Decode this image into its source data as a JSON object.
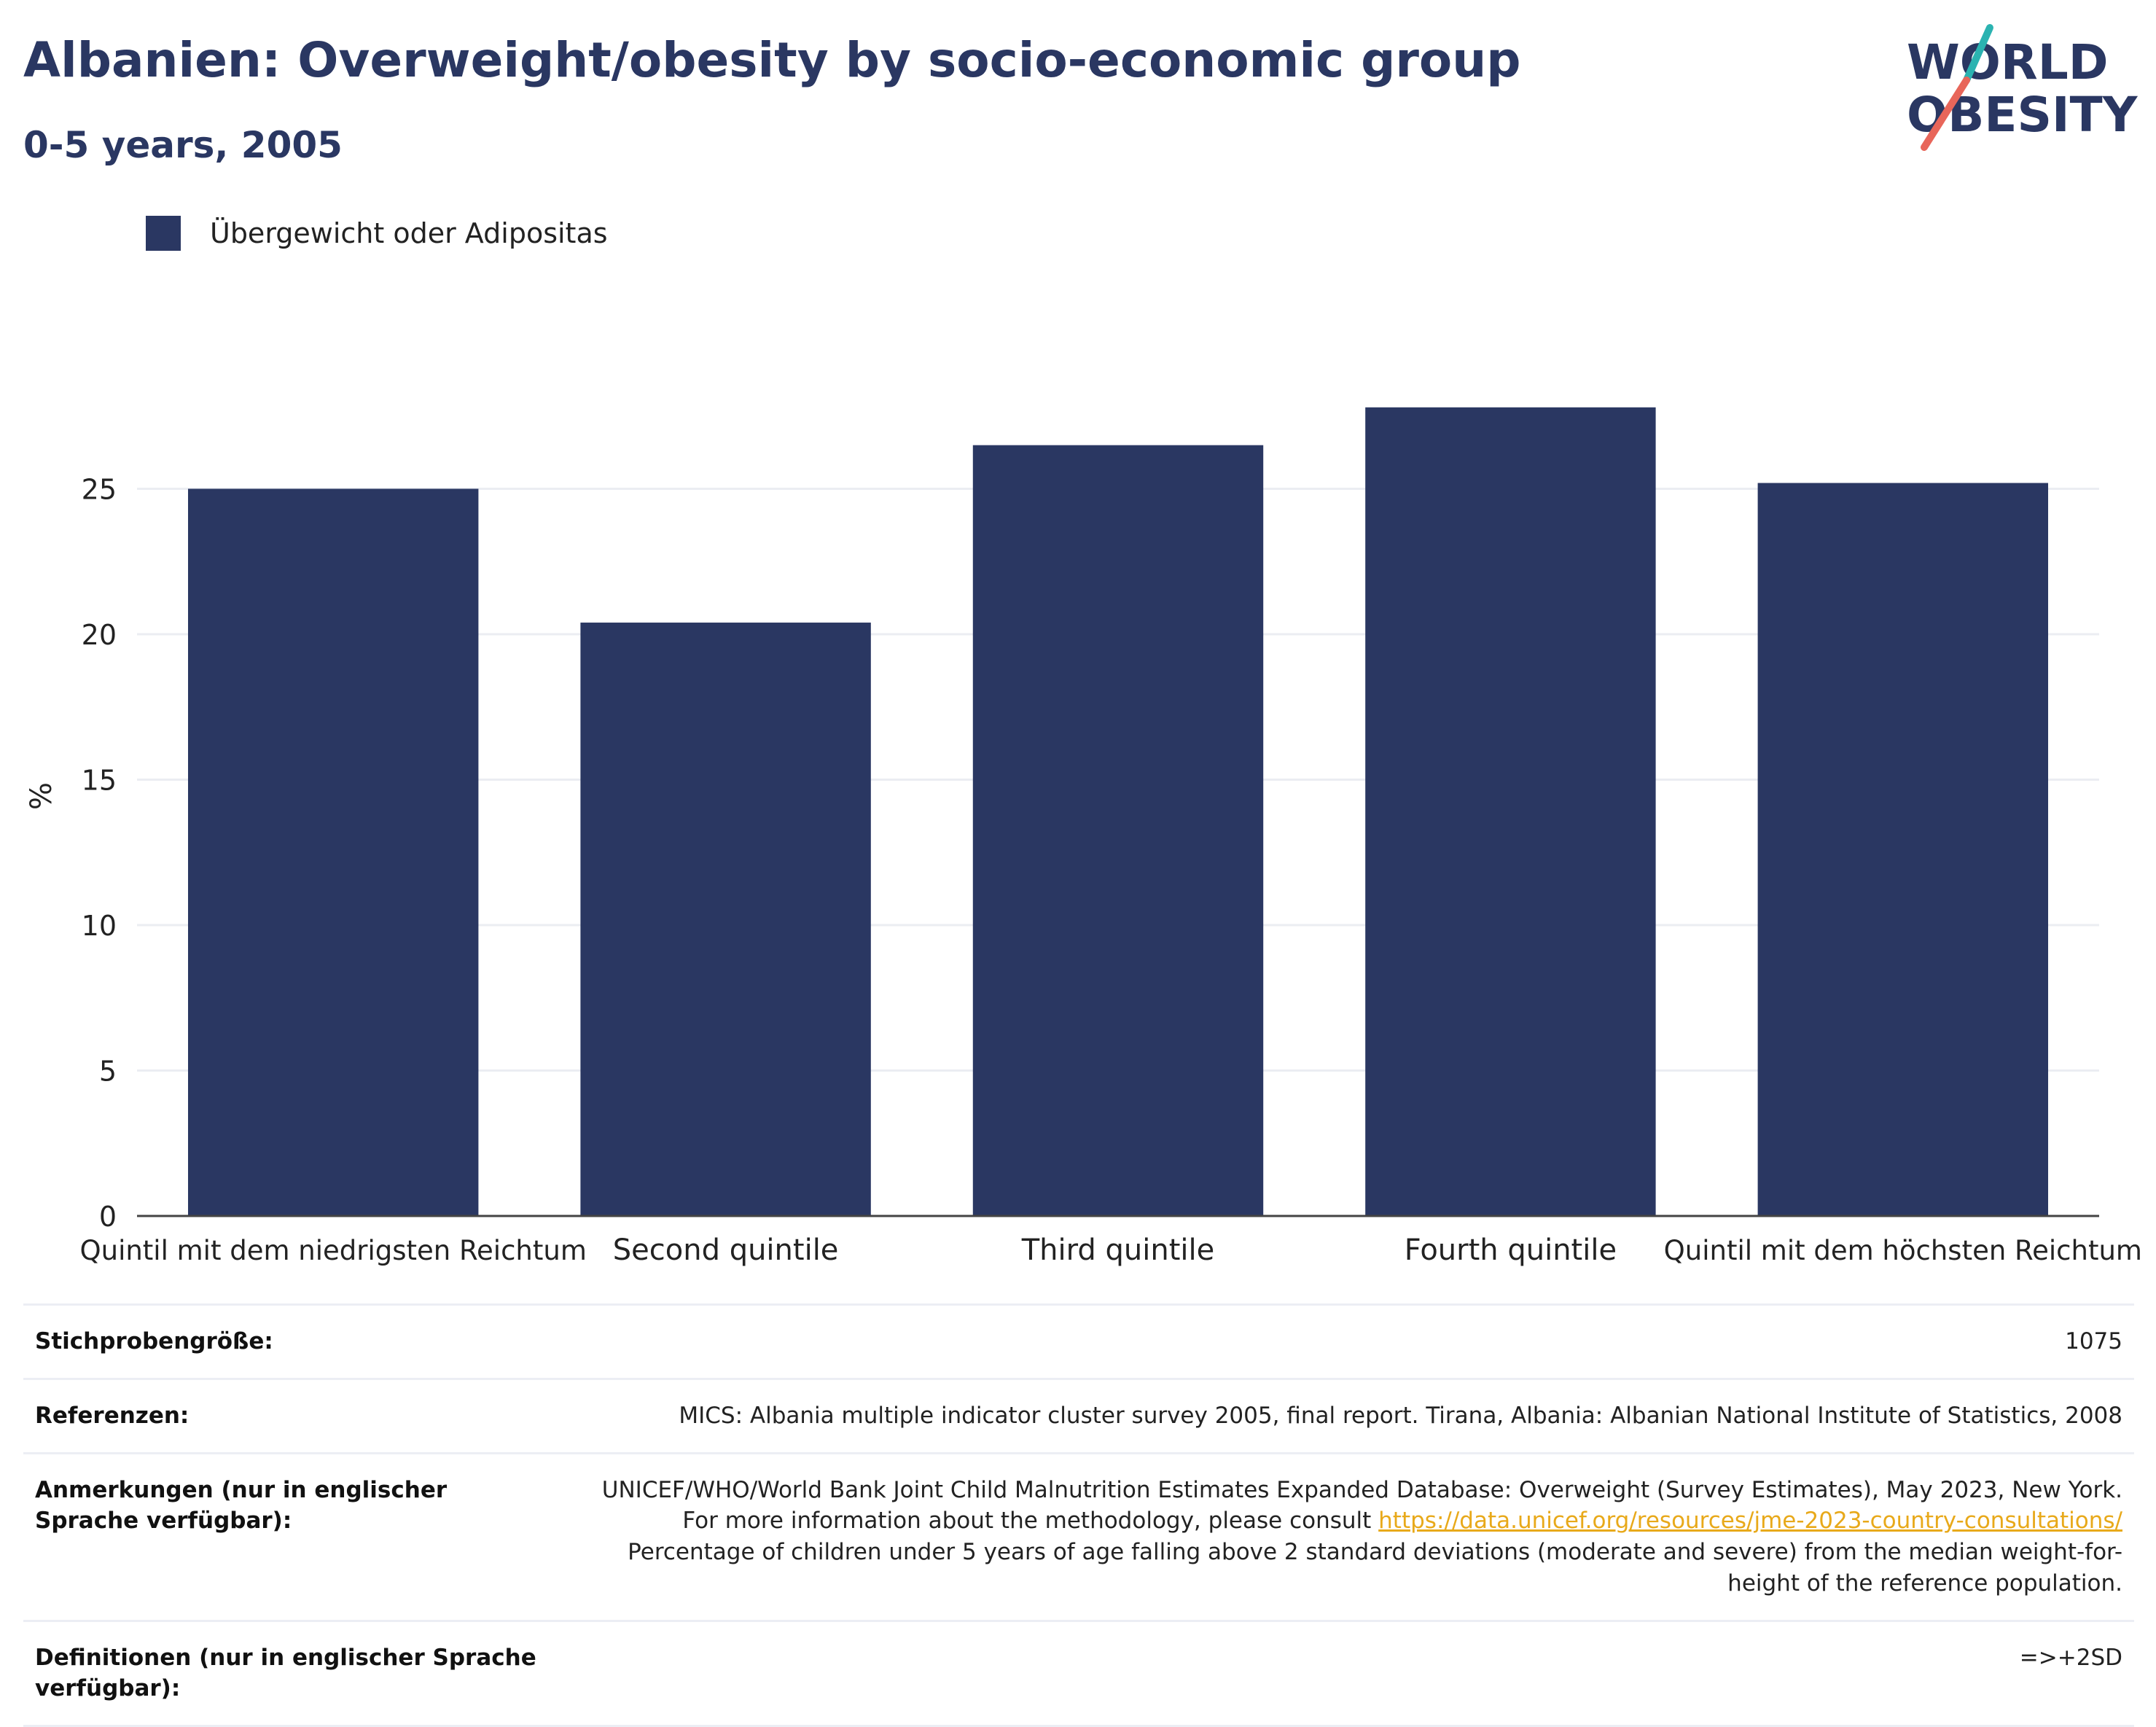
{
  "header": {
    "title": "Albanien: Overweight/obesity by socio-economic group",
    "subtitle": "0-5 years, 2005"
  },
  "logo": {
    "line1": "WORLD",
    "line2": "OBESITY",
    "colors": {
      "text": "#2a3762",
      "slash_teal": "#2bb3b1",
      "slash_coral": "#e8665a"
    }
  },
  "legend": {
    "label": "Übergewicht oder Adipositas",
    "color": "#2a3762"
  },
  "chart_data": {
    "type": "bar",
    "categories": [
      "Quintil mit dem niedrigsten Reichtum",
      "Second quintile",
      "Third quintile",
      "Fourth quintile",
      "Quintil mit dem höchsten Reichtum"
    ],
    "series": [
      {
        "name": "Übergewicht oder Adipositas",
        "values": [
          25.0,
          20.4,
          26.5,
          27.8,
          25.2
        ],
        "color": "#2a3762"
      }
    ],
    "ylabel": "%",
    "yticks": [
      0,
      5,
      10,
      15,
      20,
      25
    ],
    "ylim": [
      0,
      30
    ],
    "grid": true,
    "legend_position": "top-left"
  },
  "info": {
    "rows": [
      {
        "key": "Stichprobengröße:",
        "value": "1075"
      },
      {
        "key": "Referenzen:",
        "value": "MICS: Albania multiple indicator cluster survey 2005, final report. Tirana, Albania: Albanian National Institute of Statistics, 2008"
      },
      {
        "key": "Anmerkungen (nur in englischer Sprache verfügbar):",
        "value_before": "UNICEF/WHO/World Bank Joint Child Malnutrition Estimates Expanded Database: Overweight (Survey Estimates), May 2023, New York. For more information about the methodology, please consult ",
        "link": "https://data.unicef.org/resources/jme-2023-country-consultations/",
        "value_after": " Percentage of children under 5 years of age falling above 2 standard deviations (moderate and severe) from the median weight-for-height of the reference population."
      },
      {
        "key": "Definitionen (nur in englischer Sprache verfügbar):",
        "value": "=>+2SD"
      }
    ]
  }
}
